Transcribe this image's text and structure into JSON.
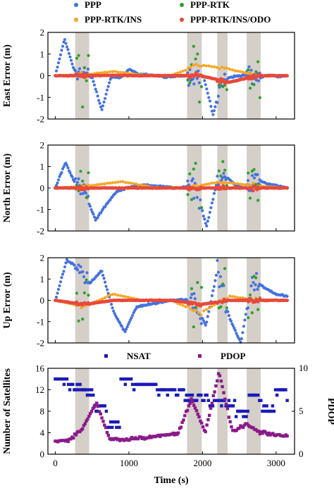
{
  "chart_data": [
    {
      "type": "scatter",
      "id": "east",
      "ylabel": "East Error (m)",
      "xlabel": "",
      "xlim": [
        -100,
        3250
      ],
      "ylim": [
        -2,
        2
      ],
      "yticks": [
        -2,
        -1,
        0,
        1,
        2
      ],
      "xticks": [
        0,
        1000,
        2000,
        3000
      ],
      "show_xtick_labels": false,
      "shaded_intervals": [
        [
          270,
          460
        ],
        [
          1790,
          1990
        ],
        [
          2200,
          2340
        ],
        [
          2600,
          2790
        ]
      ],
      "legend": [
        "PPP",
        "PPP-RTK",
        "PPP-RTK/INS",
        "PPP-RTK/INS/ODO"
      ],
      "series": [
        {
          "name": "PPP",
          "color": "#4472e0",
          "y": [
            0,
            1.7,
            0.3,
            0.1,
            -0.1,
            -1.6,
            -0.05,
            -0.1,
            0.3,
            0.05,
            0.05,
            0,
            -0.08,
            -0.02,
            0.02,
            0,
            -0.05,
            -1.8,
            -0.2,
            -0.05,
            0,
            0.05,
            -0.1,
            0.02,
            -0.05,
            0
          ]
        },
        {
          "name": "PPP-RTK",
          "y": [
            0,
            1.9,
            -1.5,
            0,
            0,
            1.5,
            -1.2,
            0.5,
            0,
            0.6,
            -1.2,
            1.8,
            -0.3,
            0,
            -0.2
          ]
        },
        {
          "name": "PPP-RTK/INS",
          "y": [
            0,
            0.05,
            0.2,
            0.03,
            0.02,
            0.5,
            0.3,
            0,
            -0.02
          ]
        },
        {
          "name": "PPP-RTK/INS/ODO",
          "y": [
            0,
            0,
            0.02,
            0,
            0,
            0,
            -0.3,
            0,
            0
          ]
        }
      ]
    },
    {
      "type": "scatter",
      "id": "north",
      "ylabel": "North Error (m)",
      "xlabel": "",
      "xlim": [
        -100,
        3250
      ],
      "ylim": [
        -2,
        2
      ],
      "yticks": [
        -2,
        -1,
        0,
        1,
        2
      ],
      "xticks": [
        0,
        1000,
        2000,
        3000
      ],
      "show_xtick_labels": false,
      "shaded_intervals": [
        [
          270,
          460
        ],
        [
          1790,
          1990
        ],
        [
          2200,
          2340
        ],
        [
          2600,
          2790
        ]
      ],
      "series": [
        {
          "name": "PPP",
          "y": [
            0,
            1.2,
            0.2,
            -0.3,
            -1.5,
            -0.8,
            -0.2,
            0,
            0.1,
            0.15,
            0.1,
            0.05,
            0,
            0.05,
            0,
            -1.8,
            0.2,
            0.5,
            0.1,
            0,
            0.4,
            0.2,
            0.1,
            0
          ]
        },
        {
          "name": "PPP-RTK",
          "y": [
            0,
            1.9,
            -1.2,
            0.5,
            0,
            1.3,
            -0.8,
            0.3,
            -1.3,
            0.7,
            -0.5,
            0
          ]
        },
        {
          "name": "PPP-RTK/INS",
          "y": [
            0,
            0.1,
            0.3,
            0.02,
            0,
            0.3,
            0.1,
            0
          ]
        },
        {
          "name": "PPP-RTK/INS/ODO",
          "y": [
            0,
            0,
            0,
            0,
            0,
            0,
            0,
            0
          ]
        }
      ]
    },
    {
      "type": "scatter",
      "id": "up",
      "ylabel": "Up Error (m)",
      "xlabel": "",
      "xlim": [
        -100,
        3250
      ],
      "ylim": [
        -2,
        2
      ],
      "yticks": [
        -2,
        -1,
        0,
        1,
        2
      ],
      "xticks": [
        0,
        1000,
        2000,
        3000
      ],
      "show_xtick_labels": false,
      "shaded_intervals": [
        [
          270,
          460
        ],
        [
          1790,
          1990
        ],
        [
          2200,
          2340
        ],
        [
          2600,
          2790
        ]
      ],
      "series": [
        {
          "name": "PPP",
          "y": [
            0,
            1.9,
            1.5,
            0.8,
            1.4,
            -0.5,
            -1.5,
            -0.3,
            -0.2,
            -0.1,
            0,
            0.05,
            0,
            -1.2,
            1.5,
            -0.8,
            -2.0,
            1.0,
            0.6,
            0.3,
            0.2
          ]
        },
        {
          "name": "PPP-RTK",
          "y": [
            0,
            1.9,
            -1.5,
            0.8,
            0,
            1.9,
            -1.5,
            1.8,
            -1.0,
            1.6,
            -1.2,
            0
          ]
        },
        {
          "name": "PPP-RTK/INS",
          "y": [
            0,
            -0.3,
            0.3,
            0,
            0,
            -0.6,
            0.2,
            0,
            0
          ]
        },
        {
          "name": "PPP-RTK/INS/ODO",
          "y": [
            0,
            -0.2,
            0,
            0,
            0,
            -0.2,
            0,
            0,
            0
          ]
        }
      ]
    },
    {
      "type": "scatter",
      "id": "nsat",
      "ylabel": "Number of Satellites",
      "ylabel_right": "PDOP",
      "xlabel": "Time (s)",
      "xlim": [
        -100,
        3250
      ],
      "ylim": [
        0,
        16
      ],
      "ylim_right": [
        0,
        10
      ],
      "yticks": [
        0,
        4,
        8,
        12,
        16
      ],
      "yticks_right": [
        0,
        5,
        10
      ],
      "xticks": [
        0,
        1000,
        2000,
        3000
      ],
      "show_xtick_labels": true,
      "shaded_intervals": [
        [
          270,
          460
        ],
        [
          1790,
          1990
        ],
        [
          2200,
          2340
        ],
        [
          2600,
          2790
        ]
      ],
      "legend": [
        "NSAT",
        "PDOP"
      ],
      "series": [
        {
          "name": "NSAT",
          "axis": "left",
          "y": [
            14,
            13,
            12,
            9,
            6,
            14,
            13,
            13,
            12,
            12,
            11,
            11,
            10,
            10,
            8,
            11,
            9,
            12,
            10
          ]
        },
        {
          "name": "PDOP",
          "axis": "right",
          "y": [
            1.5,
            1.6,
            3,
            6,
            1.8,
            1.7,
            1.9,
            2.0,
            2.2,
            2.4,
            6.5,
            2.5,
            9.5,
            2.6,
            3.5,
            2.5,
            2.3,
            2.1
          ]
        }
      ]
    }
  ],
  "colors": {
    "PPP": "#4472e0",
    "PPP-RTK": "#2ca02c",
    "PPP-RTK/INS": "#f5a623",
    "PPP-RTK/INS/ODO": "#e8493a",
    "NSAT": "#1a1ab8",
    "PDOP": "#8a1a8a",
    "shade": "#d4cfc8"
  }
}
